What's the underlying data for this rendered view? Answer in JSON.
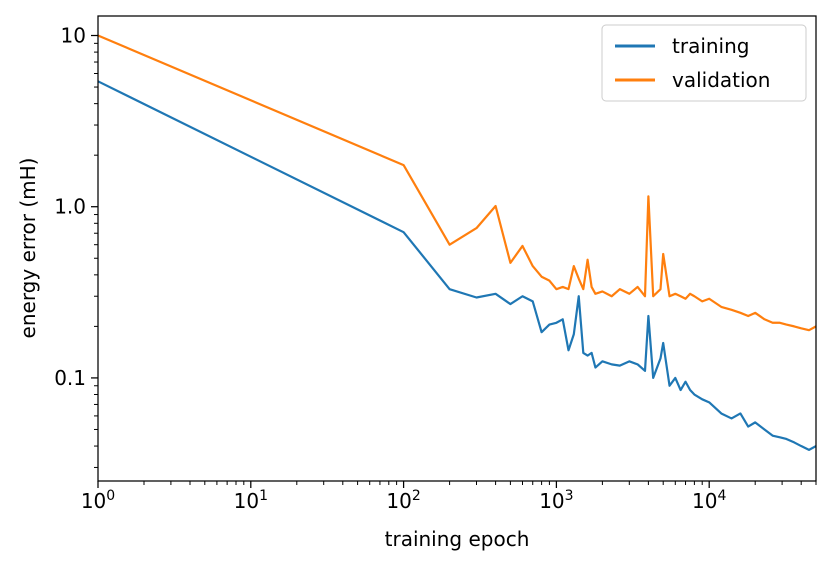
{
  "chart_data": {
    "type": "line",
    "xlabel": "training epoch",
    "ylabel": "energy error (mH)",
    "xscale": "log",
    "yscale": "log",
    "xlim": [
      1,
      50000
    ],
    "ylim": [
      0.025,
      13
    ],
    "grid": false,
    "legend_position": "top-right",
    "x_ticks": [
      {
        "value": 1,
        "base": "10",
        "exp": "0"
      },
      {
        "value": 10,
        "base": "10",
        "exp": "1"
      },
      {
        "value": 100,
        "base": "10",
        "exp": "2"
      },
      {
        "value": 1000,
        "base": "10",
        "exp": "3"
      },
      {
        "value": 10000,
        "base": "10",
        "exp": "4"
      }
    ],
    "y_ticks": [
      {
        "value": 0.1,
        "label": "0.1"
      },
      {
        "value": 1,
        "label": "1.0"
      },
      {
        "value": 10,
        "label": "10"
      }
    ],
    "series": [
      {
        "name": "training",
        "color": "#1f77b4",
        "x": [
          1,
          100,
          200,
          300,
          400,
          500,
          600,
          700,
          800,
          900,
          1000,
          1100,
          1200,
          1300,
          1400,
          1500,
          1600,
          1700,
          1800,
          2000,
          2300,
          2600,
          3000,
          3400,
          3800,
          4000,
          4300,
          4800,
          5000,
          5500,
          6000,
          6500,
          7000,
          7500,
          8000,
          9000,
          10000,
          12000,
          14000,
          16000,
          18000,
          20000,
          23000,
          26000,
          29000,
          32000,
          36000,
          40000,
          45000,
          50000
        ],
        "y": [
          5.4,
          0.71,
          0.33,
          0.295,
          0.31,
          0.27,
          0.3,
          0.28,
          0.185,
          0.205,
          0.21,
          0.22,
          0.145,
          0.18,
          0.3,
          0.14,
          0.135,
          0.14,
          0.115,
          0.125,
          0.12,
          0.118,
          0.125,
          0.12,
          0.11,
          0.23,
          0.1,
          0.13,
          0.16,
          0.09,
          0.1,
          0.085,
          0.095,
          0.085,
          0.08,
          0.075,
          0.072,
          0.062,
          0.058,
          0.062,
          0.052,
          0.055,
          0.05,
          0.046,
          0.045,
          0.044,
          0.042,
          0.04,
          0.038,
          0.04
        ]
      },
      {
        "name": "validation",
        "color": "#ff7f0e",
        "x": [
          1,
          100,
          200,
          300,
          400,
          500,
          600,
          700,
          800,
          900,
          1000,
          1100,
          1200,
          1300,
          1400,
          1500,
          1600,
          1700,
          1800,
          2000,
          2300,
          2600,
          3000,
          3400,
          3800,
          4000,
          4300,
          4800,
          5000,
          5500,
          6000,
          6500,
          7000,
          7500,
          8000,
          9000,
          10000,
          12000,
          14000,
          16000,
          18000,
          20000,
          23000,
          26000,
          29000,
          32000,
          36000,
          40000,
          45000,
          50000
        ],
        "y": [
          10,
          1.75,
          0.6,
          0.75,
          1.01,
          0.47,
          0.59,
          0.45,
          0.39,
          0.37,
          0.33,
          0.34,
          0.33,
          0.45,
          0.38,
          0.33,
          0.49,
          0.34,
          0.31,
          0.32,
          0.3,
          0.33,
          0.31,
          0.34,
          0.3,
          1.15,
          0.3,
          0.33,
          0.53,
          0.3,
          0.31,
          0.3,
          0.29,
          0.31,
          0.3,
          0.28,
          0.29,
          0.26,
          0.25,
          0.24,
          0.23,
          0.24,
          0.22,
          0.21,
          0.21,
          0.205,
          0.2,
          0.195,
          0.19,
          0.2
        ]
      }
    ]
  }
}
